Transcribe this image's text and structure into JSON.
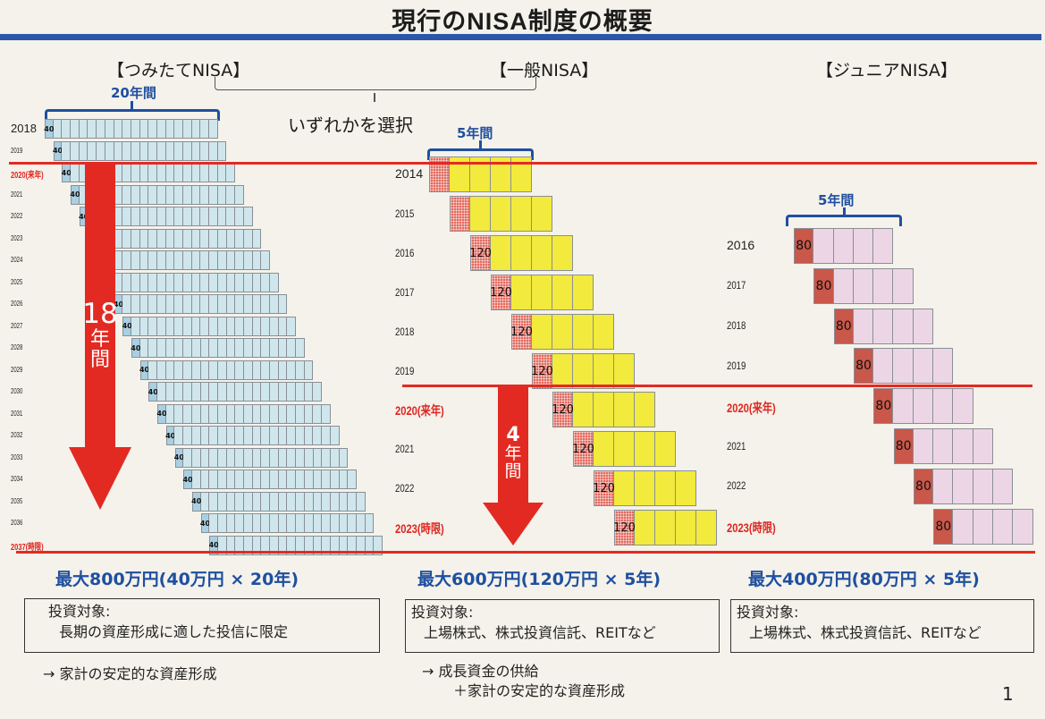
{
  "title": "現行のNISA制度の概要",
  "select_note": "いずれかを選択",
  "page_number": "1",
  "colors": {
    "title_rule": "#2a57a8",
    "accent_blue": "#1f4fa0",
    "red": "#e32a22",
    "tsumitate_first": "#a9cfe2",
    "tsumitate_cell": "#cfe6ec",
    "general_first": "#e46a5e",
    "general_cell": "#f2ea3c",
    "junior_first": "#c9574a",
    "junior_cell": "#ecd6e6"
  },
  "tsumitate": {
    "title": "【つみたてNISA】",
    "period_label": "20年間",
    "arrow_label": [
      "18",
      "年",
      "間"
    ],
    "annual_amount": "40",
    "cells_per_row": 20,
    "years": [
      {
        "label": "2018",
        "style": "large"
      },
      {
        "label": "2019",
        "style": "small"
      },
      {
        "label": "2020(来年)",
        "style": "red"
      },
      {
        "label": "2021",
        "style": "small"
      },
      {
        "label": "2022",
        "style": "small"
      },
      {
        "label": "2023",
        "style": "small"
      },
      {
        "label": "2024",
        "style": "small"
      },
      {
        "label": "2025",
        "style": "small"
      },
      {
        "label": "2026",
        "style": "small"
      },
      {
        "label": "2027",
        "style": "small"
      },
      {
        "label": "2028",
        "style": "small"
      },
      {
        "label": "2029",
        "style": "small"
      },
      {
        "label": "2030",
        "style": "small"
      },
      {
        "label": "2031",
        "style": "small"
      },
      {
        "label": "2032",
        "style": "small"
      },
      {
        "label": "2033",
        "style": "small"
      },
      {
        "label": "2034",
        "style": "small"
      },
      {
        "label": "2035",
        "style": "small"
      },
      {
        "label": "2036",
        "style": "small"
      },
      {
        "label": "2037(時限)",
        "style": "red"
      }
    ],
    "max_label": "最大800万円(40万円 × 20年)",
    "target_heading": "投資対象:",
    "target_text": "長期の資産形成に適した投信に限定",
    "notes": [
      "→  家計の安定的な資産形成"
    ]
  },
  "general": {
    "title": "【一般NISA】",
    "period_label": "5年間",
    "arrow_label": [
      "4",
      "年",
      "間"
    ],
    "annual_amount": "120",
    "cells_per_row": 5,
    "years": [
      {
        "label": "2014",
        "style": "large",
        "show_amount": false
      },
      {
        "label": "2015",
        "style": "small",
        "show_amount": false
      },
      {
        "label": "2016",
        "style": "small",
        "show_amount": true
      },
      {
        "label": "2017",
        "style": "small",
        "show_amount": true
      },
      {
        "label": "2018",
        "style": "small",
        "show_amount": true
      },
      {
        "label": "2019",
        "style": "small",
        "show_amount": true
      },
      {
        "label": "2020(来年)",
        "style": "red",
        "show_amount": true
      },
      {
        "label": "2021",
        "style": "small",
        "show_amount": true
      },
      {
        "label": "2022",
        "style": "small",
        "show_amount": true
      },
      {
        "label": "2023(時限)",
        "style": "red",
        "show_amount": true
      }
    ],
    "max_label": "最大600万円(120万円 × 5年)",
    "target_heading": "投資対象:",
    "target_text": "上場株式、株式投資信託、REITなど",
    "notes": [
      "→  成長資金の供給",
      "＋家計の安定的な資産形成"
    ]
  },
  "junior": {
    "title": "【ジュニアNISA】",
    "period_label": "5年間",
    "annual_amount": "80",
    "cells_per_row": 5,
    "years": [
      {
        "label": "2016",
        "style": "large"
      },
      {
        "label": "2017",
        "style": "small"
      },
      {
        "label": "2018",
        "style": "small"
      },
      {
        "label": "2019",
        "style": "small"
      },
      {
        "label": "2020(来年)",
        "style": "red"
      },
      {
        "label": "2021",
        "style": "small"
      },
      {
        "label": "2022",
        "style": "small"
      },
      {
        "label": "2023(時限)",
        "style": "red"
      }
    ],
    "max_label": "最大400万円(80万円 × 5年)",
    "target_heading": "投資対象:",
    "target_text": "上場株式、株式投資信託、REITなど"
  }
}
